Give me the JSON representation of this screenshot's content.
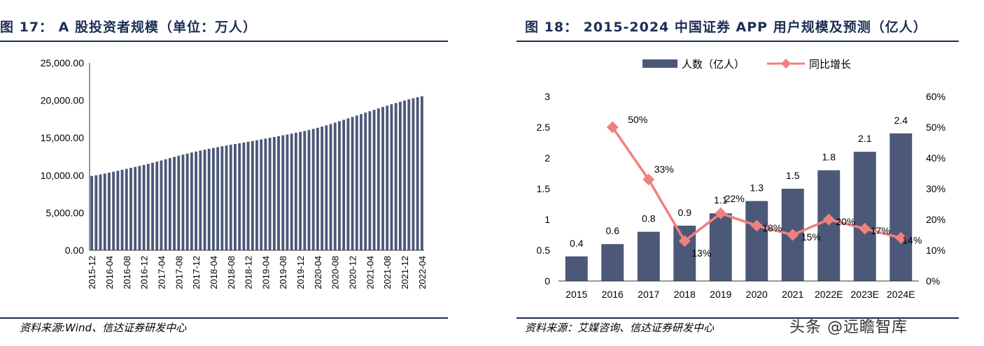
{
  "left": {
    "title": "图 17： A 股投资者规模（单位：万人）",
    "source": "资料来源:Wind、信达证券研发中心"
  },
  "right": {
    "title": "图 18： 2015-2024 中国证券 APP 用户规模及预测（亿人）",
    "source": "资料来源：艾媒咨询、信达证券研发中心"
  },
  "watermark": "头条 @远瞻智库",
  "colors": {
    "title": "#1c2e55",
    "bar": "#4c5878",
    "line": "#f08080"
  },
  "chart_data": [
    {
      "type": "bar",
      "ylim": [
        0,
        25000
      ],
      "yticks": [
        "0.00",
        "5,000.00",
        "10,000.00",
        "15,000.00",
        "20,000.00",
        "25,000.00"
      ],
      "ytick_values": [
        0,
        5000,
        10000,
        15000,
        20000,
        25000
      ],
      "xtick_labels": [
        "2015-12",
        "2016-04",
        "2016-08",
        "2016-12",
        "2017-04",
        "2017-08",
        "2017-12",
        "2018-04",
        "2018-08",
        "2018-12",
        "2019-04",
        "2019-08",
        "2019-12",
        "2020-04",
        "2020-08",
        "2020-12",
        "2021-04",
        "2021-08",
        "2021-12",
        "2022-04"
      ],
      "x_start": "2015-12",
      "x_end": "2022-05",
      "values": [
        9910,
        10000,
        10120,
        10240,
        10360,
        10480,
        10600,
        10730,
        10860,
        10990,
        11120,
        11260,
        11390,
        11530,
        11680,
        11830,
        11980,
        12140,
        12300,
        12460,
        12610,
        12760,
        12900,
        13040,
        13170,
        13300,
        13420,
        13540,
        13650,
        13760,
        13870,
        13980,
        14080,
        14180,
        14280,
        14380,
        14480,
        14580,
        14680,
        14790,
        14900,
        15010,
        15120,
        15230,
        15340,
        15450,
        15560,
        15680,
        15800,
        15920,
        16050,
        16190,
        16340,
        16500,
        16670,
        16850,
        17030,
        17220,
        17410,
        17600,
        17790,
        17980,
        18170,
        18360,
        18550,
        18740,
        18930,
        19120,
        19300,
        19480,
        19650,
        19820,
        19980,
        20140,
        20280,
        20420,
        20560
      ]
    },
    {
      "type": "bar+line",
      "legend": [
        {
          "label": "人数（亿人）",
          "type": "bar"
        },
        {
          "label": "同比增长",
          "type": "line"
        }
      ],
      "legend_position": "top",
      "categories": [
        "2015",
        "2016",
        "2017",
        "2018",
        "2019",
        "2020",
        "2021",
        "2022E",
        "2023E",
        "2024E"
      ],
      "bar_values": [
        0.4,
        0.6,
        0.8,
        0.9,
        1.1,
        1.3,
        1.5,
        1.8,
        2.1,
        2.4
      ],
      "bar_labels": [
        "0.4",
        "0.6",
        "0.8",
        "0.9",
        "1.1",
        "1.3",
        "1.5",
        "1.8",
        "2.1",
        "2.4"
      ],
      "line_values": [
        null,
        50,
        33,
        13,
        22,
        18,
        15,
        20,
        17,
        14
      ],
      "line_labels": [
        "",
        "50%",
        "33%",
        "13%",
        "22%",
        "18%",
        "15%",
        "20%",
        "17%",
        "14%"
      ],
      "ylim_left": [
        0,
        3
      ],
      "yticks_left": [
        "0",
        "0.5",
        "1",
        "1.5",
        "2",
        "2.5",
        "3"
      ],
      "ylim_right": [
        0,
        60
      ],
      "yticks_right": [
        "0%",
        "10%",
        "20%",
        "30%",
        "40%",
        "50%",
        "60%"
      ]
    }
  ]
}
